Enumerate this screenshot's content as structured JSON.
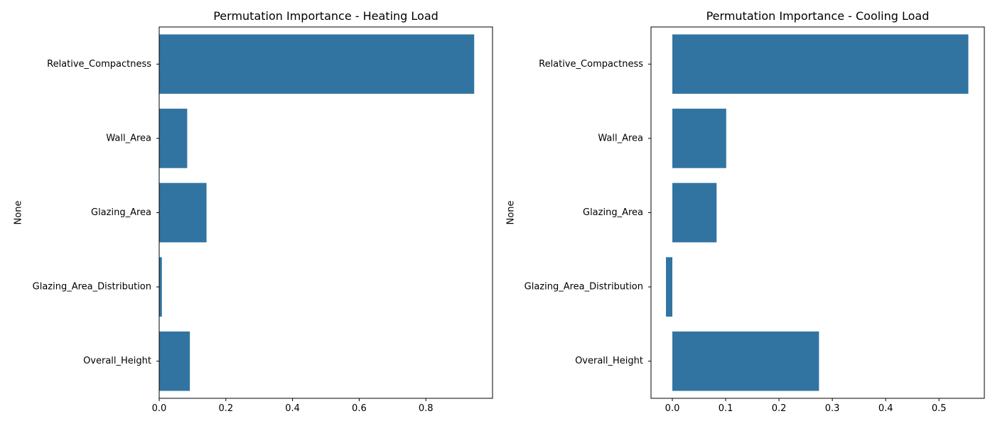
{
  "figure": {
    "background": "#ffffff"
  },
  "chart_data": [
    {
      "type": "bar",
      "orientation": "horizontal",
      "title": "Permutation Importance - Heating Load",
      "xlabel": "",
      "ylabel": "None",
      "categories": [
        "Relative_Compactness",
        "Wall_Area",
        "Glazing_Area",
        "Glazing_Area_Distribution",
        "Overall_Height"
      ],
      "values": [
        0.945,
        0.084,
        0.142,
        0.008,
        0.092
      ],
      "xlim": [
        0,
        1.0
      ],
      "xticks": [
        0.0,
        0.2,
        0.4,
        0.6,
        0.8
      ],
      "xtick_labels": [
        "0.0",
        "0.2",
        "0.4",
        "0.6",
        "0.8"
      ],
      "bar_color": "#3274a1",
      "grid": false,
      "legend": "none"
    },
    {
      "type": "bar",
      "orientation": "horizontal",
      "title": "Permutation Importance - Cooling Load",
      "xlabel": "",
      "ylabel": "None",
      "categories": [
        "Relative_Compactness",
        "Wall_Area",
        "Glazing_Area",
        "Glazing_Area_Distribution",
        "Overall_Height"
      ],
      "values": [
        0.555,
        0.101,
        0.083,
        -0.012,
        0.275
      ],
      "xlim": [
        -0.04,
        0.585
      ],
      "xticks": [
        0.0,
        0.1,
        0.2,
        0.3,
        0.4,
        0.5
      ],
      "xtick_labels": [
        "0.0",
        "0.1",
        "0.2",
        "0.3",
        "0.4",
        "0.5"
      ],
      "bar_color": "#3274a1",
      "grid": false,
      "legend": "none"
    }
  ]
}
